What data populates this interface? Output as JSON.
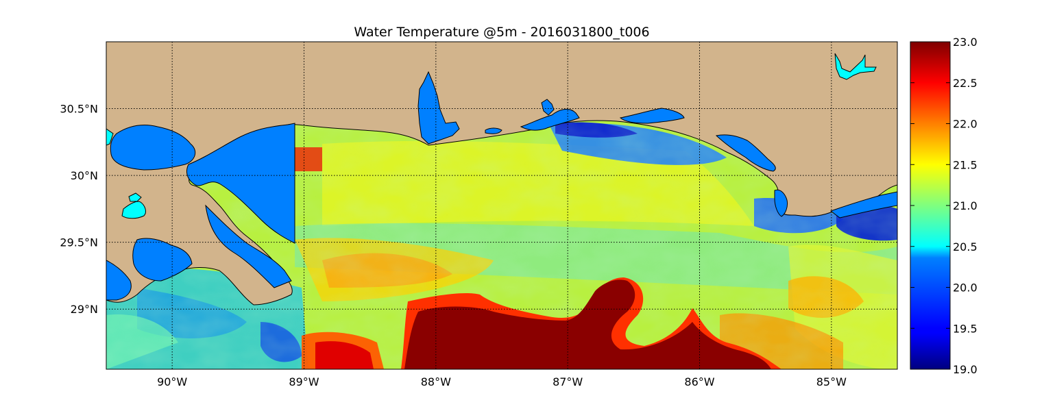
{
  "title": "Water Temperature @5m - 2016031800_t006",
  "map": {
    "lon_range": [
      -90.5,
      -84.5
    ],
    "lat_range": [
      28.55,
      31.0
    ],
    "lon_ticks": [
      {
        "value": -90,
        "label": "90°W"
      },
      {
        "value": -89,
        "label": "89°W"
      },
      {
        "value": -88,
        "label": "88°W"
      },
      {
        "value": -87,
        "label": "87°W"
      },
      {
        "value": -86,
        "label": "86°W"
      },
      {
        "value": -85,
        "label": "85°W"
      }
    ],
    "lat_ticks": [
      {
        "value": 30.5,
        "label": "30.5°N"
      },
      {
        "value": 30.0,
        "label": "30°N"
      },
      {
        "value": 29.5,
        "label": "29.5°N"
      },
      {
        "value": 29.0,
        "label": "29°N"
      }
    ],
    "gridlines": true,
    "colors": {
      "land": "#d2b48c",
      "bay": "#0080ff",
      "lake": "#00ffff",
      "coast": "#000000"
    }
  },
  "colorbar": {
    "min": 19.0,
    "max": 23.0,
    "colormap": "jet",
    "ticks": [
      "19.0",
      "19.5",
      "20.0",
      "20.5",
      "21.0",
      "21.5",
      "22.0",
      "22.5",
      "23.0"
    ],
    "placement": "right"
  }
}
